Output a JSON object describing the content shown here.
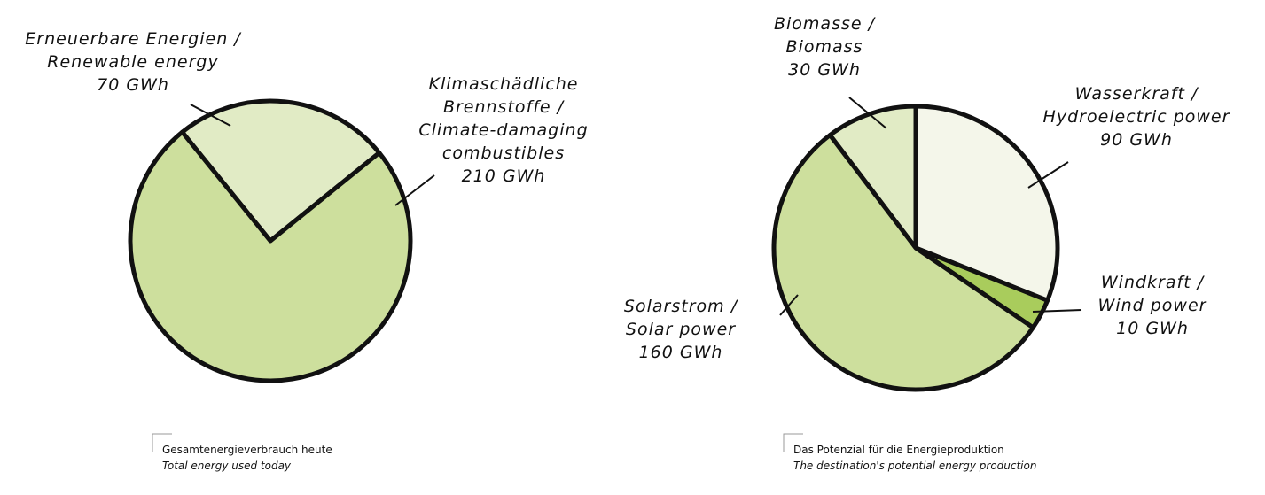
{
  "chart_data": [
    {
      "type": "pie",
      "categories": [
        [
          "Erneuerbare Energien /",
          "Renewable energy"
        ],
        [
          "Klimaschädliche",
          "Brennstoffe /",
          "Climate-damaging",
          "combustibles"
        ]
      ],
      "values": [
        70,
        210
      ],
      "value_labels": [
        "70 GWh",
        "210 GWh"
      ],
      "colors": [
        "#e1ebc5",
        "#cddf9d"
      ],
      "caption": "Gesamtenergieverbrauch heute",
      "caption_en": "Total energy used today"
    },
    {
      "type": "pie",
      "categories": [
        [
          "Biomasse /",
          "Biomass"
        ],
        [
          "Wasserkraft /",
          "Hydroelectric power"
        ],
        [
          "Windkraft /",
          "Wind power"
        ],
        [
          "Solarstrom /",
          "Solar power"
        ]
      ],
      "values": [
        30,
        90,
        10,
        160
      ],
      "value_labels": [
        "30 GWh",
        "90 GWh",
        "10 GWh",
        "160 GWh"
      ],
      "colors": [
        "#e1ebc5",
        "#f4f6ea",
        "#a9cc5c",
        "#cddf9d"
      ],
      "caption": "Das Potenzial für die Energieproduktion",
      "caption_en": "The destination's potential energy production"
    }
  ]
}
